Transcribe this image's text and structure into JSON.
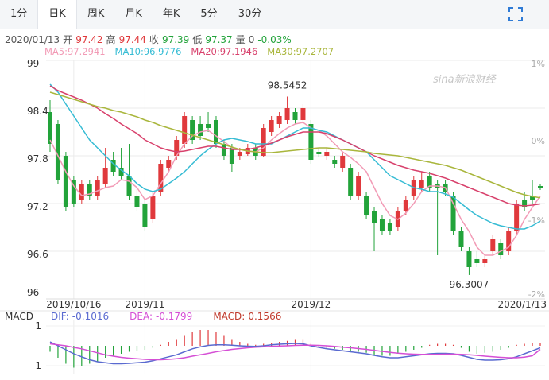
{
  "tabs": [
    "1分",
    "日K",
    "周K",
    "月K",
    "年K",
    "5分",
    "30分"
  ],
  "active_tab": 1,
  "quote": {
    "date": "2020/01/13",
    "labels": [
      "开",
      "高",
      "收",
      "低",
      "量"
    ],
    "volume": 0,
    "change": "-0.03%"
  },
  "watermark": "sina新浪财经",
  "chart_data": {
    "type": "candlestick",
    "categories": [
      null,
      null,
      null,
      "2019/10/16",
      null,
      null,
      null,
      null,
      null,
      null,
      null,
      null,
      "2019/11",
      null,
      null,
      null,
      null,
      null,
      null,
      null,
      null,
      null,
      null,
      null,
      null,
      null,
      null,
      null,
      null,
      null,
      null,
      null,
      null,
      "2019/12",
      null,
      null,
      null,
      null,
      null,
      null,
      null,
      null,
      null,
      null,
      null,
      null,
      null,
      null,
      null,
      null,
      null,
      null,
      null,
      null,
      null,
      null,
      null,
      null,
      null,
      null,
      null,
      null,
      "2020/1/13"
    ],
    "candles": {
      "open": [
        98.35,
        98.2,
        97.8,
        97.5,
        97.25,
        97.45,
        97.3,
        97.45,
        97.75,
        97.65,
        97.55,
        97.3,
        97.2,
        97.0,
        97.35,
        97.65,
        97.8,
        97.95,
        98.25,
        98.2,
        98.2,
        98.25,
        97.95,
        97.9,
        97.8,
        97.82,
        97.9,
        97.8,
        98.1,
        98.2,
        98.25,
        98.35,
        98.25,
        98.2,
        97.85,
        97.8,
        97.75,
        97.65,
        97.65,
        97.3,
        97.3,
        97.1,
        97.0,
        96.95,
        96.9,
        97.1,
        97.3,
        97.4,
        97.55,
        97.45,
        97.45,
        97.3,
        96.85,
        96.6,
        96.5,
        96.45,
        96.6,
        96.7,
        96.6,
        96.85,
        97.25,
        97.3,
        97.42
      ],
      "high": [
        98.5,
        98.25,
        97.85,
        97.55,
        97.5,
        97.5,
        97.55,
        97.9,
        97.85,
        97.9,
        97.95,
        97.4,
        97.25,
        97.35,
        97.75,
        97.8,
        98.05,
        98.35,
        98.3,
        98.3,
        98.35,
        98.3,
        98.0,
        97.95,
        97.9,
        97.95,
        97.95,
        98.2,
        98.3,
        98.35,
        98.5452,
        98.4,
        98.45,
        98.25,
        97.9,
        97.9,
        97.8,
        97.85,
        97.7,
        97.6,
        97.35,
        97.15,
        97.05,
        97.0,
        97.15,
        97.3,
        97.55,
        97.6,
        97.6,
        97.5,
        97.5,
        97.35,
        96.9,
        96.65,
        96.6,
        96.55,
        96.8,
        96.75,
        96.9,
        97.25,
        97.35,
        97.5,
        97.44
      ],
      "low": [
        97.85,
        97.45,
        97.1,
        97.15,
        97.2,
        97.25,
        97.25,
        97.4,
        97.55,
        97.5,
        97.25,
        97.1,
        96.85,
        96.95,
        97.3,
        97.6,
        97.75,
        97.9,
        97.95,
        98.0,
        98.1,
        97.9,
        97.75,
        97.6,
        97.75,
        97.8,
        97.75,
        97.78,
        98.05,
        98.15,
        98.2,
        98.2,
        98.2,
        97.7,
        97.78,
        97.75,
        97.65,
        97.6,
        97.25,
        97.25,
        97.0,
        96.6,
        96.8,
        96.8,
        96.85,
        97.05,
        97.25,
        97.35,
        97.35,
        96.55,
        97.3,
        96.8,
        96.6,
        96.3007,
        96.4,
        96.4,
        96.55,
        96.5,
        96.55,
        96.8,
        97.1,
        97.2,
        97.37
      ],
      "close": [
        97.95,
        97.5,
        97.15,
        97.2,
        97.45,
        97.3,
        97.5,
        97.65,
        97.6,
        97.55,
        97.3,
        97.15,
        96.9,
        97.3,
        97.7,
        97.75,
        98.0,
        98.3,
        98.0,
        98.05,
        98.15,
        97.95,
        97.8,
        97.7,
        97.85,
        97.9,
        97.8,
        98.15,
        98.25,
        98.3,
        98.4,
        98.25,
        98.4,
        97.75,
        97.82,
        97.85,
        97.7,
        97.8,
        97.3,
        97.55,
        97.05,
        96.95,
        96.85,
        96.85,
        97.1,
        97.25,
        97.5,
        97.5,
        97.4,
        97.4,
        97.35,
        96.85,
        96.65,
        96.4,
        96.45,
        96.5,
        96.75,
        96.55,
        96.85,
        97.2,
        97.15,
        97.25,
        97.39
      ]
    },
    "up_color": "#e0393c",
    "down_color": "#22a33a",
    "ylim": [
      96,
      99
    ],
    "yticks": [
      99,
      98.4,
      97.8,
      97.2,
      96.6,
      96
    ],
    "y2lim": [
      -2,
      1
    ],
    "y2ticks": [
      {
        "value": 1,
        "label": "1%"
      },
      {
        "value": 0,
        "label": "0%"
      },
      {
        "value": -1,
        "label": "-1%"
      },
      {
        "value": -2,
        "label": "-2%"
      }
    ],
    "grid": true,
    "series": [
      {
        "name": "MA5:",
        "color": "#f29bb6",
        "values": [
          98.0,
          97.8,
          97.6,
          97.42,
          97.3,
          97.32,
          97.36,
          97.4,
          97.42,
          97.5,
          97.48,
          97.4,
          97.25,
          97.3,
          97.45,
          97.6,
          97.8,
          97.95,
          98.05,
          98.1,
          98.12,
          98.05,
          97.98,
          97.9,
          97.88,
          97.86,
          97.85,
          97.9,
          98.0,
          98.08,
          98.15,
          98.2,
          98.22,
          98.15,
          98.12,
          98.05,
          97.95,
          97.85,
          97.78,
          97.7,
          97.6,
          97.4,
          97.2,
          97.05,
          97.0,
          97.08,
          97.2,
          97.35,
          97.42,
          97.42,
          97.4,
          97.2,
          97.0,
          96.85,
          96.65,
          96.55,
          96.55,
          96.6,
          96.65,
          96.8,
          97.0,
          97.15,
          97.2941
        ]
      },
      {
        "name": "MA10:",
        "color": "#36bcd4",
        "values": [
          98.7,
          98.6,
          98.45,
          98.3,
          98.15,
          98.0,
          97.9,
          97.8,
          97.7,
          97.62,
          97.55,
          97.45,
          97.38,
          97.35,
          97.38,
          97.45,
          97.52,
          97.6,
          97.7,
          97.8,
          97.88,
          97.95,
          98.0,
          98.02,
          98.0,
          97.98,
          97.95,
          97.95,
          97.95,
          98.0,
          98.05,
          98.1,
          98.15,
          98.15,
          98.12,
          98.1,
          98.05,
          98.0,
          97.95,
          97.9,
          97.85,
          97.75,
          97.65,
          97.55,
          97.5,
          97.45,
          97.4,
          97.38,
          97.35,
          97.35,
          97.32,
          97.28,
          97.2,
          97.12,
          97.05,
          97.0,
          96.95,
          96.92,
          96.9,
          96.88,
          96.88,
          96.92,
          96.9776
        ]
      },
      {
        "name": "MA20:",
        "color": "#d8416c",
        "values": [
          98.68,
          98.62,
          98.58,
          98.54,
          98.5,
          98.45,
          98.4,
          98.33,
          98.27,
          98.2,
          98.14,
          98.08,
          98.0,
          97.95,
          97.9,
          97.87,
          97.85,
          97.86,
          97.88,
          97.9,
          97.92,
          97.92,
          97.9,
          97.88,
          97.88,
          97.88,
          97.9,
          97.93,
          97.96,
          98.0,
          98.04,
          98.07,
          98.1,
          98.1,
          98.1,
          98.08,
          98.04,
          98.0,
          97.95,
          97.9,
          97.85,
          97.8,
          97.76,
          97.72,
          97.68,
          97.65,
          97.62,
          97.6,
          97.58,
          97.55,
          97.52,
          97.48,
          97.44,
          97.4,
          97.36,
          97.32,
          97.28,
          97.24,
          97.2,
          97.18,
          97.17,
          97.18,
          97.1946
        ]
      },
      {
        "name": "MA30:",
        "color": "#a9b63c",
        "values": [
          98.6,
          98.57,
          98.54,
          98.51,
          98.48,
          98.45,
          98.42,
          98.4,
          98.37,
          98.35,
          98.32,
          98.29,
          98.25,
          98.22,
          98.18,
          98.15,
          98.12,
          98.09,
          98.06,
          98.03,
          98.0,
          97.97,
          97.94,
          97.91,
          97.88,
          97.86,
          97.85,
          97.84,
          97.84,
          97.85,
          97.86,
          97.87,
          97.88,
          97.89,
          97.9,
          97.9,
          97.89,
          97.88,
          97.87,
          97.86,
          97.85,
          97.83,
          97.82,
          97.81,
          97.8,
          97.78,
          97.76,
          97.74,
          97.72,
          97.7,
          97.68,
          97.65,
          97.62,
          97.58,
          97.54,
          97.5,
          97.46,
          97.42,
          97.38,
          97.34,
          97.31,
          97.29,
          97.2707
        ]
      }
    ],
    "macd": {
      "title": "MACD",
      "ylim": [
        -1.4,
        1.2
      ],
      "yticks": [
        1,
        -1
      ],
      "series": [
        {
          "name": "DIF:",
          "color": "#5a6ad0",
          "values": [
            0.2,
            0.0,
            -0.2,
            -0.4,
            -0.55,
            -0.7,
            -0.8,
            -0.85,
            -0.9,
            -0.9,
            -0.88,
            -0.85,
            -0.82,
            -0.75,
            -0.65,
            -0.55,
            -0.45,
            -0.3,
            -0.15,
            -0.05,
            0.02,
            0.05,
            0.05,
            0.03,
            0.0,
            -0.02,
            -0.03,
            0.0,
            0.05,
            0.08,
            0.1,
            0.12,
            0.1,
            0.0,
            -0.08,
            -0.15,
            -0.2,
            -0.25,
            -0.3,
            -0.35,
            -0.4,
            -0.48,
            -0.55,
            -0.6,
            -0.6,
            -0.55,
            -0.5,
            -0.45,
            -0.4,
            -0.38,
            -0.38,
            -0.4,
            -0.48,
            -0.58,
            -0.68,
            -0.72,
            -0.72,
            -0.7,
            -0.65,
            -0.55,
            -0.4,
            -0.25,
            -0.1016
          ]
        },
        {
          "name": "DEA:",
          "color": "#d54fd5",
          "values": [
            0.1,
            0.05,
            0.0,
            -0.08,
            -0.15,
            -0.25,
            -0.35,
            -0.45,
            -0.52,
            -0.58,
            -0.62,
            -0.65,
            -0.68,
            -0.7,
            -0.7,
            -0.68,
            -0.65,
            -0.6,
            -0.52,
            -0.45,
            -0.38,
            -0.3,
            -0.24,
            -0.18,
            -0.14,
            -0.1,
            -0.07,
            -0.05,
            -0.03,
            -0.01,
            0.0,
            0.02,
            0.03,
            0.03,
            0.02,
            0.0,
            -0.03,
            -0.07,
            -0.1,
            -0.14,
            -0.18,
            -0.23,
            -0.28,
            -0.33,
            -0.37,
            -0.4,
            -0.42,
            -0.43,
            -0.43,
            -0.43,
            -0.42,
            -0.42,
            -0.43,
            -0.45,
            -0.48,
            -0.52,
            -0.55,
            -0.58,
            -0.6,
            -0.6,
            -0.57,
            -0.5,
            -0.1799
          ]
        }
      ],
      "histogram": {
        "name": "MACD:",
        "color": "#c0392b",
        "values": [
          -0.3,
          -0.6,
          -0.9,
          -1.1,
          -1.0,
          -0.9,
          -0.8,
          -0.6,
          -0.5,
          -0.4,
          -0.3,
          -0.25,
          -0.2,
          -0.1,
          0.05,
          0.2,
          0.3,
          0.5,
          0.7,
          0.8,
          0.8,
          0.7,
          0.5,
          0.3,
          0.2,
          0.1,
          0.05,
          0.1,
          0.15,
          0.2,
          0.25,
          0.3,
          0.3,
          0.1,
          -0.05,
          -0.1,
          -0.15,
          -0.2,
          -0.25,
          -0.3,
          -0.35,
          -0.45,
          -0.5,
          -0.5,
          -0.4,
          -0.3,
          -0.2,
          -0.1,
          0.05,
          0.1,
          0.1,
          0.05,
          -0.1,
          -0.3,
          -0.4,
          -0.35,
          -0.3,
          -0.2,
          -0.1,
          0.05,
          0.1,
          0.13,
          0.1566
        ]
      }
    }
  }
}
